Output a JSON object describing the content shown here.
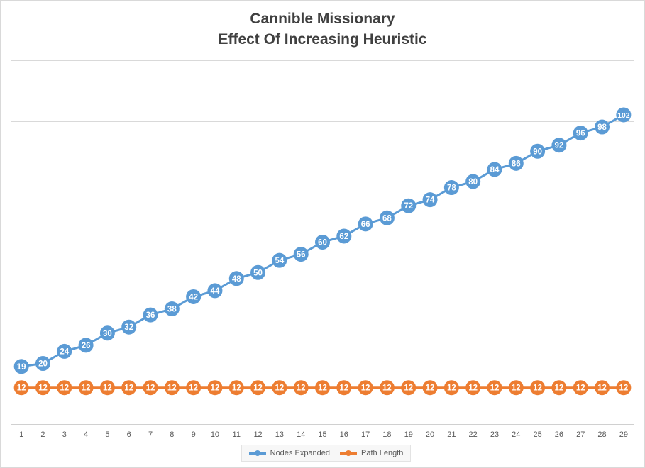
{
  "chart_data": {
    "type": "line",
    "title_lines": [
      "Cannible Missionary",
      "Effect Of Increasing Heuristic"
    ],
    "categories": [
      "1",
      "2",
      "3",
      "4",
      "5",
      "6",
      "7",
      "8",
      "9",
      "10",
      "11",
      "12",
      "13",
      "14",
      "15",
      "16",
      "17",
      "18",
      "19",
      "20",
      "21",
      "22",
      "23",
      "24",
      "25",
      "26",
      "27",
      "28",
      "29"
    ],
    "series": [
      {
        "name": "Nodes Expanded",
        "color": "#5b9bd5",
        "values": [
          19,
          20,
          24,
          26,
          30,
          32,
          36,
          38,
          42,
          44,
          48,
          50,
          54,
          56,
          60,
          62,
          66,
          68,
          72,
          74,
          78,
          80,
          84,
          86,
          90,
          92,
          96,
          98,
          102
        ]
      },
      {
        "name": "Path Length",
        "color": "#ed7d31",
        "values": [
          12,
          12,
          12,
          12,
          12,
          12,
          12,
          12,
          12,
          12,
          12,
          12,
          12,
          12,
          12,
          12,
          12,
          12,
          12,
          12,
          12,
          12,
          12,
          12,
          12,
          12,
          12,
          12,
          12
        ]
      }
    ],
    "ylim": [
      0,
      120
    ],
    "gridlines": [
      20,
      40,
      60,
      80,
      100,
      120
    ],
    "y_tick_labels_shown": false,
    "data_labels": true,
    "grid": true,
    "legend_position": "bottom"
  }
}
